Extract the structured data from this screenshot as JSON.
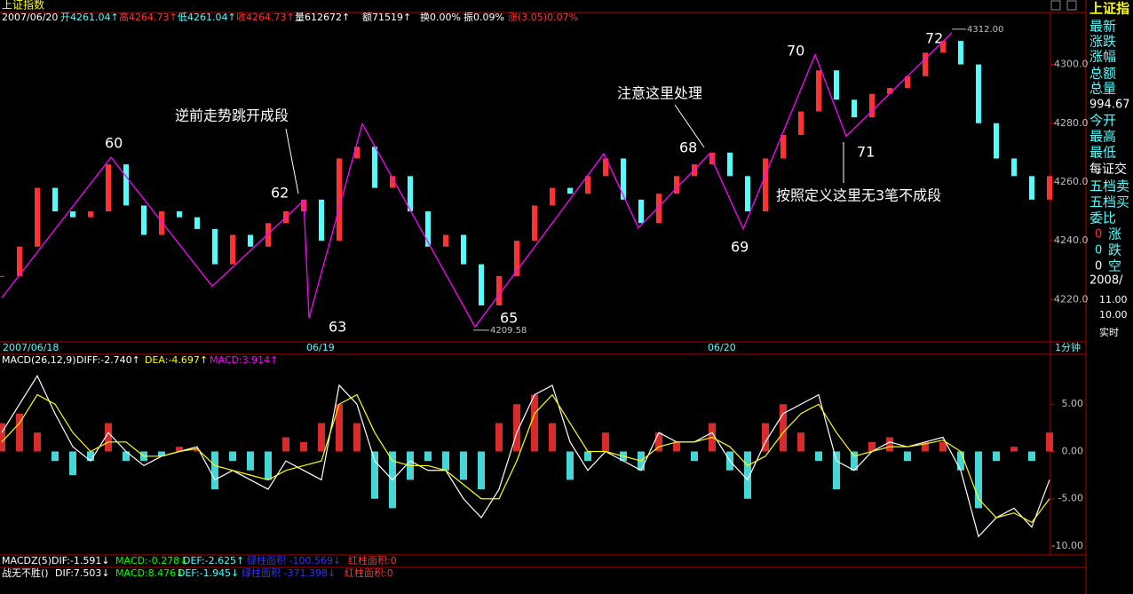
{
  "title": "上证指数",
  "header": [
    "2007/06/20",
    "开4261.04↑",
    "高4264.73↑",
    "低4261.04↑",
    "收4264.73↑",
    "量612672↑",
    "额71519↑",
    "换0.00%",
    "振0.09%",
    "涨(3.05)0.07%"
  ],
  "dates": [
    "2007/06/18",
    "06/19",
    "06/20"
  ],
  "period": "1分钟",
  "macd_header": [
    "MACD(26,12,9)",
    "DIFF:-2.740↑",
    "DEA:-4.697↑",
    "MACD:3.914↑"
  ],
  "footer": [
    [
      "MACDZ(5)",
      "DIF:-1.591↓",
      "MACD:-0.278↓",
      "DEF:-2.625↑",
      "绿柱面积 -100.569↓",
      "红柱面积:0"
    ],
    [
      "战无不胜()",
      "DIF:7.503↓",
      "MACD:8.476↓",
      "DEF:-1.945↓",
      "绿柱面积 -371.398↓",
      "红柱面积:0"
    ]
  ],
  "side_panel": [
    "上证指",
    "最新",
    "涨跌",
    "涨幅",
    "总额",
    "总量",
    "994.67",
    "今开",
    "最高",
    "最低",
    "每证交",
    "五档卖",
    "五档买",
    "委比",
    "0",
    "涨",
    "0",
    "跌",
    "0",
    "空",
    "2008/",
    "11.00",
    "10.00",
    "实时"
  ],
  "chart_data": [
    {
      "type": "stock",
      "closes": [
        4228,
        4238,
        4258,
        4250,
        4248,
        4250,
        4266,
        4252,
        4242,
        4250,
        4248,
        4244,
        4232,
        4242,
        4238,
        4246,
        4250,
        4254,
        4240,
        4268,
        4272,
        4258,
        4262,
        4250,
        4238,
        4242,
        4232,
        4218,
        4228,
        4240,
        4252,
        4258,
        4256,
        4262,
        4268,
        4254,
        4246,
        4256,
        4262,
        4266,
        4270,
        4262,
        4250,
        4268,
        4276,
        4284,
        4298,
        4288,
        4282,
        4290,
        4292,
        4296,
        4304,
        4308,
        4300,
        4280,
        4268,
        4262,
        4254,
        4262
      ],
      "up_color": "#ff3232",
      "down_color": "#54fcfc",
      "zigzag": {
        "color": "#ff00ff",
        "x": [
          0,
          6.15,
          11.85,
          17,
          17.3,
          20.3,
          26.65,
          33.9,
          35.85,
          39.85,
          41.75,
          45.8,
          47.55,
          53.5
        ],
        "values": [
          4220.6,
          4268.4,
          4224.5,
          4253.7,
          4213.7,
          4279.8,
          4210.7,
          4269.6,
          4244.4,
          4269.6,
          4244.1,
          4303.3,
          4275.6,
          4310.8
        ]
      },
      "annotations": [
        "60",
        "62",
        "63",
        "65",
        "68",
        "69",
        "70",
        "71",
        "72",
        "逆前走势跳开成段",
        "注意这里处理",
        "按照定义这里无3笔不成段"
      ],
      "extreme_labels": [
        4209.58,
        {
          "value": 4312,
          "label": "4312.00"
        }
      ],
      "xlim": [
        -0.1,
        59.05
      ],
      "ylim": [
        4205.6,
        4317.7
      ],
      "yticks": [
        {
          "value": 4220,
          "label": "4220.0"
        },
        {
          "value": 4240,
          "label": "4240.0"
        },
        {
          "value": 4260,
          "label": "4260.0"
        },
        {
          "value": 4280,
          "label": "4280.0"
        },
        {
          "value": 4300,
          "label": "4300.0"
        }
      ]
    },
    {
      "type": "macd",
      "histogram": [
        3,
        4,
        2,
        -1,
        -2.5,
        -1,
        3,
        -1,
        -1,
        -0.5,
        0.5,
        0.2,
        -4,
        -1,
        -2,
        -3,
        1.5,
        1,
        3,
        5,
        3,
        -5,
        -6,
        -3,
        -1,
        -2,
        -3,
        -4,
        3,
        5,
        6,
        3,
        -3,
        -1,
        2,
        -1,
        -2,
        2,
        1,
        -1,
        3,
        -2,
        -5,
        3,
        5,
        2,
        -1,
        -4,
        -2,
        1,
        1.5,
        -1,
        1,
        1,
        -2,
        -6,
        -1,
        0.5,
        -1,
        2
      ],
      "series": [
        {
          "color": "#ffffff",
          "values": [
            2,
            5,
            8,
            4,
            0.5,
            -1,
            2,
            0,
            -1.5,
            -0.5,
            0,
            0.5,
            -3,
            -2,
            -3,
            -4,
            -1,
            -2,
            -3,
            7,
            5,
            -1,
            -3,
            -1,
            -2,
            -2,
            -5,
            -7,
            -4,
            2,
            6,
            7,
            1,
            -2,
            0,
            -1,
            -2,
            2,
            1,
            1,
            2,
            -1,
            -3,
            1,
            4,
            5,
            6,
            -1,
            -2,
            0,
            1,
            0.5,
            1,
            1.5,
            -2,
            -9,
            -7,
            -6,
            -8,
            -3
          ]
        },
        {
          "color": "#ffff00",
          "values": [
            1,
            3,
            6,
            5,
            2,
            0,
            1,
            1,
            -0.5,
            -0.5,
            0,
            0.3,
            -1.5,
            -2,
            -2.5,
            -3,
            -2,
            -1.5,
            -1,
            5,
            6,
            2,
            -1,
            -1.5,
            -1.5,
            -2,
            -3.5,
            -5,
            -5,
            -1,
            4,
            6,
            3,
            0,
            0,
            -0.5,
            -1,
            0.5,
            1,
            1,
            1.5,
            0.5,
            -1.5,
            -0.5,
            2,
            4,
            5,
            2,
            -0.5,
            0,
            0.5,
            0.5,
            0.8,
            1.2,
            0,
            -5,
            -7,
            -6.5,
            -7.5,
            -5
          ]
        }
      ],
      "up_color": "#ff3232",
      "down_color": "#54fcfc",
      "xlim": [
        -0.1,
        59.05
      ],
      "ylim": [
        -10.94,
        10.28
      ],
      "yticks": [
        {
          "value": -10,
          "label": "-10.00"
        },
        {
          "value": -5,
          "label": "-5.00"
        },
        {
          "value": 0,
          "label": "0.00"
        },
        {
          "value": 5,
          "label": "5.00"
        }
      ]
    }
  ]
}
